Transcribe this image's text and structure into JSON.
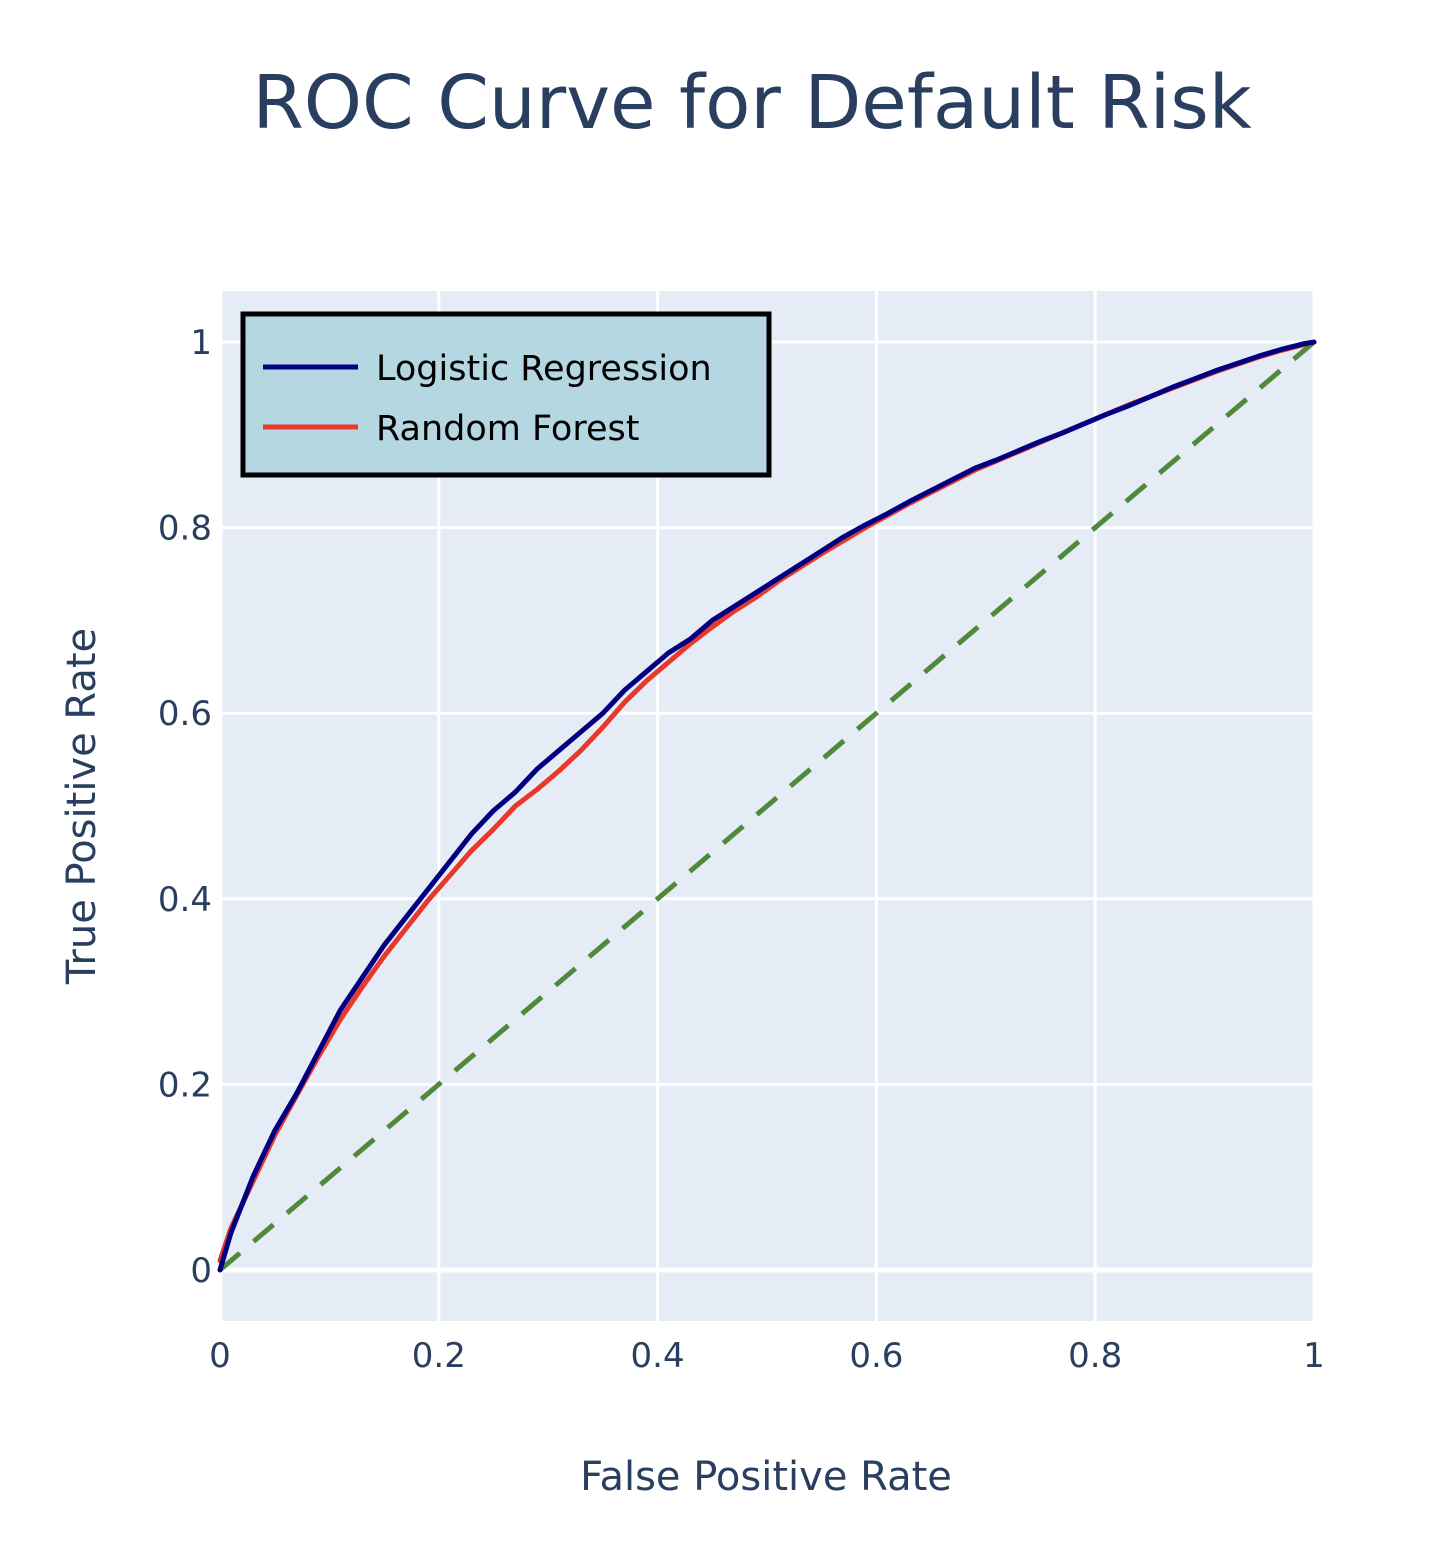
{
  "chart_data": {
    "type": "line",
    "title": "ROC Curve for Default Risk",
    "xlabel": "False Positive Rate",
    "ylabel": "True Positive Rate",
    "xlim": [
      0,
      1
    ],
    "ylim": [
      -0.055,
      1.055
    ],
    "x_ticks": [
      {
        "value": 0,
        "label": "0"
      },
      {
        "value": 0.2,
        "label": "0.2"
      },
      {
        "value": 0.4,
        "label": "0.4"
      },
      {
        "value": 0.6,
        "label": "0.6"
      },
      {
        "value": 0.8,
        "label": "0.8"
      },
      {
        "value": 1,
        "label": "1"
      }
    ],
    "y_ticks": [
      {
        "value": 0,
        "label": "0"
      },
      {
        "value": 0.2,
        "label": "0.2"
      },
      {
        "value": 0.4,
        "label": "0.4"
      },
      {
        "value": 0.6,
        "label": "0.6"
      },
      {
        "value": 0.8,
        "label": "0.8"
      },
      {
        "value": 1,
        "label": "1"
      }
    ],
    "grid": true,
    "legend_position": "top-left",
    "series": [
      {
        "name": "Logistic Regression",
        "color": "#000080",
        "x": [
          0,
          0.01,
          0.03,
          0.05,
          0.07,
          0.09,
          0.11,
          0.13,
          0.15,
          0.17,
          0.19,
          0.21,
          0.23,
          0.25,
          0.27,
          0.29,
          0.31,
          0.33,
          0.35,
          0.37,
          0.39,
          0.41,
          0.43,
          0.45,
          0.47,
          0.49,
          0.51,
          0.53,
          0.55,
          0.57,
          0.59,
          0.61,
          0.63,
          0.65,
          0.67,
          0.69,
          0.71,
          0.73,
          0.75,
          0.77,
          0.79,
          0.81,
          0.83,
          0.85,
          0.87,
          0.89,
          0.91,
          0.93,
          0.95,
          0.97,
          0.99,
          1
        ],
        "values": [
          0,
          0.04,
          0.1,
          0.15,
          0.19,
          0.235,
          0.28,
          0.315,
          0.35,
          0.38,
          0.41,
          0.44,
          0.47,
          0.495,
          0.515,
          0.54,
          0.56,
          0.58,
          0.6,
          0.625,
          0.645,
          0.665,
          0.68,
          0.7,
          0.715,
          0.73,
          0.745,
          0.76,
          0.775,
          0.79,
          0.803,
          0.815,
          0.828,
          0.84,
          0.852,
          0.864,
          0.873,
          0.883,
          0.893,
          0.902,
          0.912,
          0.922,
          0.931,
          0.941,
          0.951,
          0.96,
          0.969,
          0.977,
          0.985,
          0.992,
          0.998,
          1
        ]
      },
      {
        "name": "Random Forest",
        "color": "#e8382b",
        "x": [
          0,
          0.01,
          0.03,
          0.05,
          0.07,
          0.09,
          0.11,
          0.13,
          0.15,
          0.17,
          0.19,
          0.21,
          0.23,
          0.25,
          0.27,
          0.29,
          0.31,
          0.33,
          0.35,
          0.37,
          0.39,
          0.41,
          0.43,
          0.45,
          0.47,
          0.49,
          0.51,
          0.53,
          0.55,
          0.57,
          0.59,
          0.61,
          0.63,
          0.65,
          0.67,
          0.69,
          0.71,
          0.73,
          0.75,
          0.77,
          0.79,
          0.81,
          0.83,
          0.85,
          0.87,
          0.89,
          0.91,
          0.93,
          0.95,
          0.97,
          0.99,
          1
        ],
        "values": [
          0.01,
          0.045,
          0.095,
          0.145,
          0.188,
          0.23,
          0.27,
          0.305,
          0.338,
          0.368,
          0.398,
          0.425,
          0.452,
          0.475,
          0.5,
          0.518,
          0.538,
          0.56,
          0.585,
          0.612,
          0.635,
          0.655,
          0.675,
          0.693,
          0.71,
          0.725,
          0.742,
          0.757,
          0.772,
          0.786,
          0.8,
          0.813,
          0.826,
          0.838,
          0.85,
          0.862,
          0.872,
          0.882,
          0.892,
          0.902,
          0.912,
          0.922,
          0.932,
          0.941,
          0.95,
          0.959,
          0.968,
          0.976,
          0.984,
          0.991,
          0.997,
          1
        ]
      },
      {
        "name": "",
        "color": "#4e8a3a",
        "dash": true,
        "x": [
          0,
          1
        ],
        "values": [
          0,
          1
        ]
      }
    ]
  }
}
